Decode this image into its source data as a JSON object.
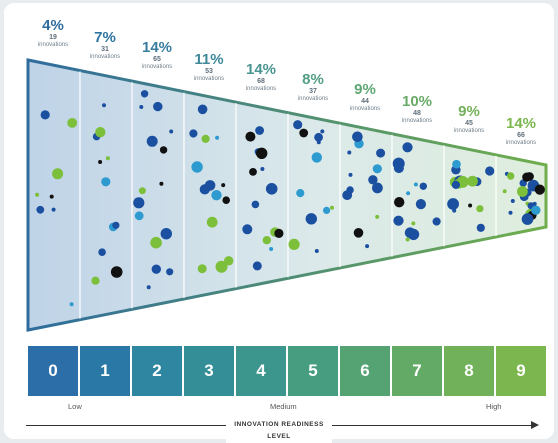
{
  "chart_data": {
    "type": "funnel",
    "xlabel": "INNOVATION READINESS LEVEL",
    "scale_labels": {
      "low": "Low",
      "medium": "Medium",
      "high": "High"
    },
    "unit": "innovations",
    "levels": [
      {
        "level": "0",
        "percent": "4%",
        "count": "19",
        "color": "#2b6ea8"
      },
      {
        "level": "1",
        "percent": "7%",
        "count": "31",
        "color": "#2978a6"
      },
      {
        "level": "2",
        "percent": "14%",
        "count": "65",
        "color": "#2f86a0"
      },
      {
        "level": "3",
        "percent": "11%",
        "count": "53",
        "color": "#348e97"
      },
      {
        "level": "4",
        "percent": "14%",
        "count": "68",
        "color": "#3c968d"
      },
      {
        "level": "5",
        "percent": "8%",
        "count": "37",
        "color": "#479d80"
      },
      {
        "level": "6",
        "percent": "9%",
        "count": "44",
        "color": "#55a373"
      },
      {
        "level": "7",
        "percent": "10%",
        "count": "48",
        "color": "#62aa65"
      },
      {
        "level": "8",
        "percent": "9%",
        "count": "45",
        "color": "#70b15a"
      },
      {
        "level": "9",
        "percent": "14%",
        "count": "66",
        "color": "#7cb64e"
      }
    ]
  }
}
